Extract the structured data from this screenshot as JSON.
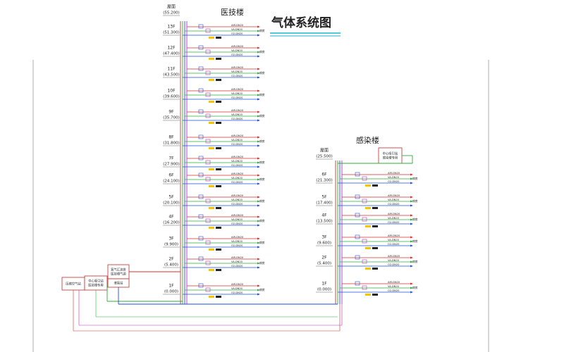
{
  "title": "气体系统图",
  "buildings": [
    {
      "name": "医技楼",
      "floors": [
        {
          "label": "屋面",
          "elevation": "(55.200)"
        },
        {
          "label": "13F",
          "elevation": "(51.300)"
        },
        {
          "label": "12F",
          "elevation": "(47.400)"
        },
        {
          "label": "11F",
          "elevation": "(43.500)"
        },
        {
          "label": "10F",
          "elevation": "(39.600)"
        },
        {
          "label": "9F",
          "elevation": "(35.700)"
        },
        {
          "label": "8F",
          "elevation": "(31.800)"
        },
        {
          "label": "7F",
          "elevation": "(27.900)"
        },
        {
          "label": "6F",
          "elevation": "(24.100)"
        },
        {
          "label": "5F",
          "elevation": "(20.100)"
        },
        {
          "label": "4F",
          "elevation": "(16.200)"
        },
        {
          "label": "3F",
          "elevation": "(9.900)"
        },
        {
          "label": "2F",
          "elevation": "(5.400)"
        },
        {
          "label": "1F",
          "elevation": "(0.000)"
        }
      ]
    },
    {
      "name": "感染楼",
      "floors": [
        {
          "label": "屋面",
          "elevation": "(25.500)"
        },
        {
          "label": "6F",
          "elevation": "(21.300)"
        },
        {
          "label": "5F",
          "elevation": "(17.400)"
        },
        {
          "label": "4F",
          "elevation": "(13.500)"
        },
        {
          "label": "3F",
          "elevation": "(9.600)"
        },
        {
          "label": "2F",
          "elevation": "(5.400)"
        },
        {
          "label": "1F",
          "elevation": "(0.000)"
        }
      ]
    }
  ],
  "pipe_labels": [
    "AIR-DN20",
    "VA-DN20",
    "O2-DN20"
  ],
  "room_label": "病房",
  "sources": [
    {
      "lines": [
        "压缩空气站"
      ]
    },
    {
      "lines": [
        "中心吸引站",
        "医技楼专用"
      ]
    },
    {
      "lines": [
        "氧气汇流排",
        "医技楼气源"
      ]
    },
    {
      "lines": [
        "液氧站"
      ]
    },
    {
      "lines": [
        "中心吸引站",
        "感染楼专用"
      ]
    }
  ]
}
